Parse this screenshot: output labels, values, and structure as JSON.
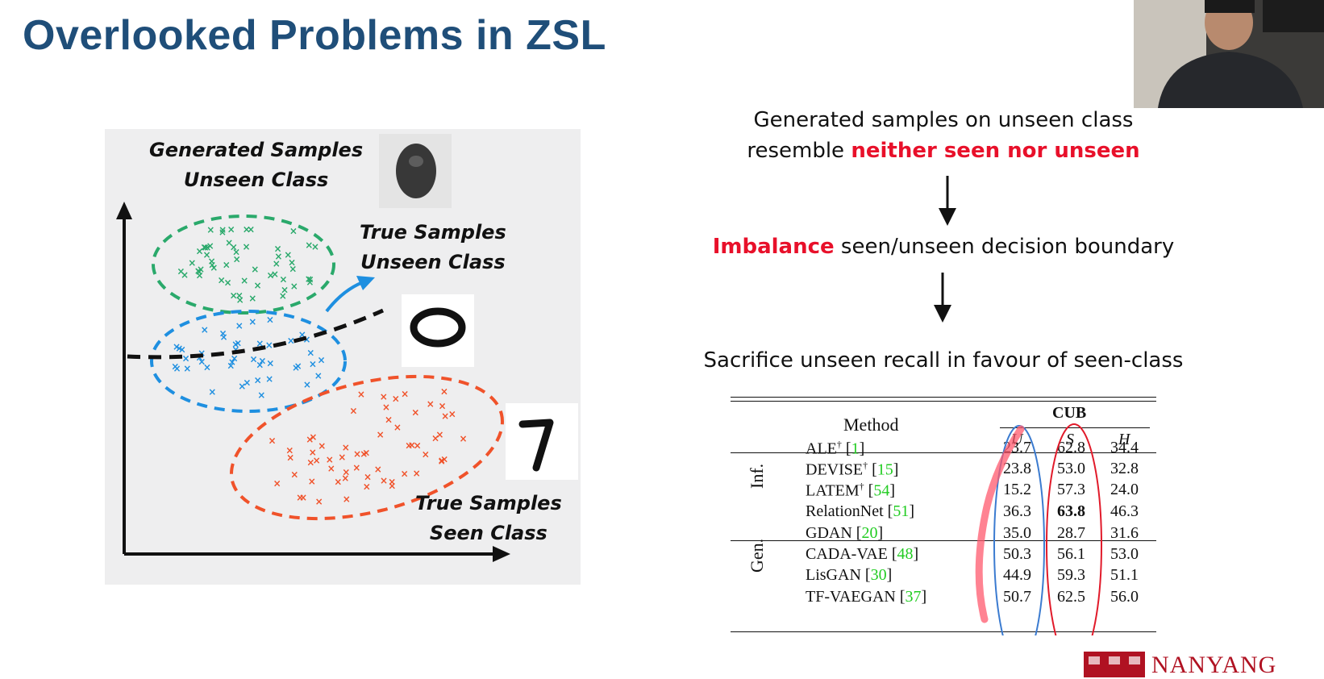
{
  "slide": {
    "title": "Overlooked Problems in ZSL"
  },
  "figure": {
    "label_generated_line1": "Generated Samples",
    "label_generated_line2": "Unseen Class",
    "label_true_unseen_line1": "True Samples",
    "label_true_unseen_line2": "Unseen Class",
    "label_true_seen_line1": "True Samples",
    "label_true_seen_line2": "Seen Class",
    "colors": {
      "generated": "#2aa96b",
      "unseen": "#1e8fe0",
      "seen": "#f0522a"
    }
  },
  "flow": {
    "step1_line1": "Generated samples on unseen class",
    "step1_line2_prefix": "resemble ",
    "step1_line2_highlight": "neither seen nor unseen",
    "step2_highlight": "Imbalance",
    "step2_rest": " seen/unseen decision boundary",
    "step3": "Sacrifice unseen recall in favour of seen-class",
    "highlight_color": "#e8102a"
  },
  "table": {
    "method_header": "Method",
    "dataset_header": "CUB",
    "col_u": "U",
    "col_s": "S",
    "col_h": "H",
    "groups": [
      {
        "label": "Inf.",
        "rows": [
          {
            "name": "ALE",
            "sup": "†",
            "ref": "1",
            "u": "23.7",
            "s": "62.8",
            "h": "34.4"
          },
          {
            "name": "DEVISE",
            "sup": "†",
            "ref": "15",
            "u": "23.8",
            "s": "53.0",
            "h": "32.8"
          },
          {
            "name": "LATEM",
            "sup": "†",
            "ref": "54",
            "u": "15.2",
            "s": "57.3",
            "h": "24.0"
          },
          {
            "name": "RelationNet",
            "sup": "",
            "ref": "51",
            "u": "36.3",
            "s": "63.8",
            "h": "46.3"
          }
        ]
      },
      {
        "label": "Gen.",
        "rows": [
          {
            "name": "GDAN",
            "sup": "",
            "ref": "20",
            "u": "35.0",
            "s": "28.7",
            "h": "31.6"
          },
          {
            "name": "CADA-VAE",
            "sup": "",
            "ref": "48",
            "u": "50.3",
            "s": "56.1",
            "h": "53.0"
          },
          {
            "name": "LisGAN",
            "sup": "",
            "ref": "30",
            "u": "44.9",
            "s": "59.3",
            "h": "51.1"
          },
          {
            "name": "TF-VAEGAN",
            "sup": "",
            "ref": "37",
            "u": "50.7",
            "s": "62.5",
            "h": "56.0"
          }
        ]
      }
    ]
  },
  "logo": {
    "text": "NANYANG"
  }
}
